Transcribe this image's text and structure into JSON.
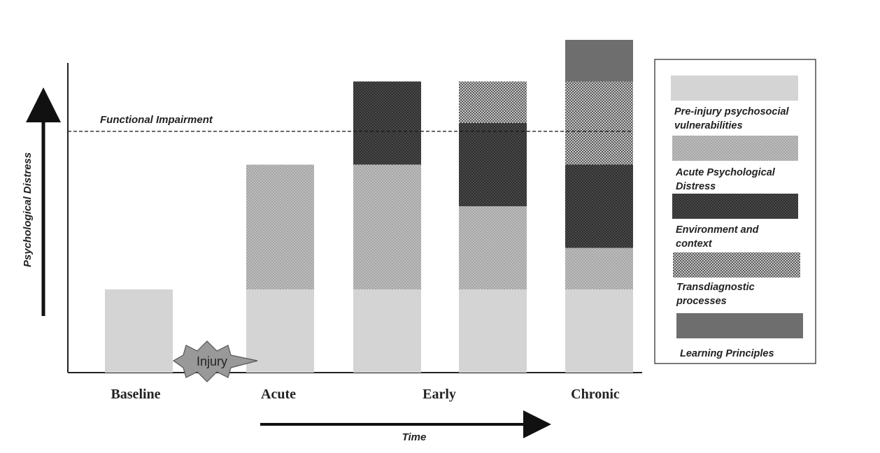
{
  "chart_data": {
    "type": "bar",
    "stacked": true,
    "ylabel": "Psychological Distress",
    "xlabel": "Time",
    "categories": [
      "Baseline",
      "Acute",
      "Early",
      "Early",
      "Chronic"
    ],
    "category_labels": [
      "Baseline",
      "Acute",
      "Early",
      "Chronic"
    ],
    "reference_line": {
      "label": "Functional Impairment",
      "value": 2.9
    },
    "event_marker": {
      "label": "Injury",
      "between": [
        "Baseline",
        "Acute"
      ]
    },
    "series": [
      {
        "name": "Pre-injury psychosocial vulnerabilities",
        "color": "#d4d4d4",
        "pattern": "solid",
        "values": [
          1,
          1,
          1,
          1,
          1
        ]
      },
      {
        "name": "Acute Psychological Distress",
        "color": "#b0b0b0",
        "pattern": "fine-dots",
        "values": [
          0,
          1.5,
          1.5,
          1,
          0.5
        ]
      },
      {
        "name": "Environment and context",
        "color": "#3a3a3a",
        "pattern": "dark-dots",
        "values": [
          0,
          0,
          1,
          1,
          1
        ]
      },
      {
        "name": "Transdiagnostic processes",
        "color": "#9a9a9a",
        "pattern": "checker",
        "values": [
          0,
          0,
          0,
          0.5,
          1
        ]
      },
      {
        "name": "Learning Principles",
        "color": "#6e6e6e",
        "pattern": "solid",
        "values": [
          0,
          0,
          0,
          0,
          0.5
        ]
      }
    ],
    "ylim": [
      0,
      4
    ],
    "legend_position": "right",
    "grid": false
  }
}
